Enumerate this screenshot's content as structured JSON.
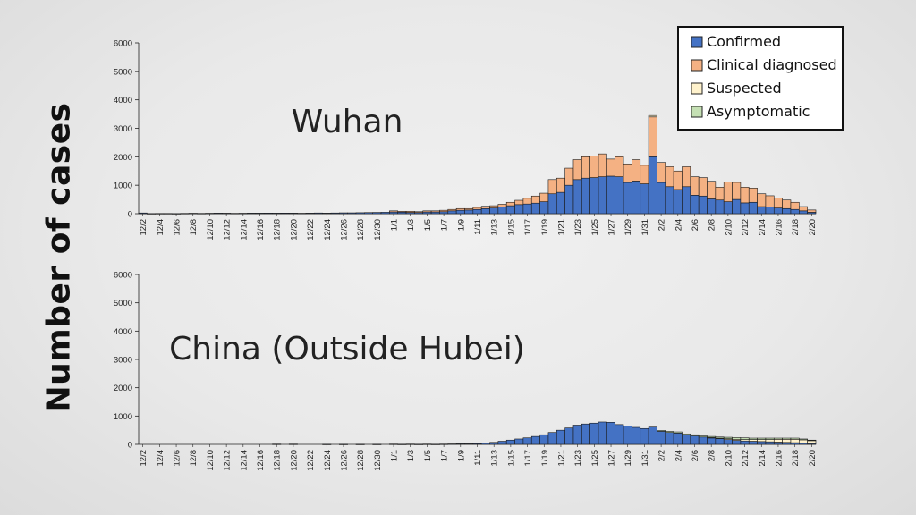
{
  "ylabel": "Number of cases",
  "colors": {
    "confirmed": "#4472C4",
    "clinical": "#F4B183",
    "suspected": "#FFF2CC",
    "asymptomatic": "#C5E0B4",
    "axis": "#222222"
  },
  "legend": {
    "position": "top-right",
    "items": [
      {
        "label": "Confirmed",
        "color": "#4472C4"
      },
      {
        "label": "Clinical diagnosed",
        "color": "#F4B183"
      },
      {
        "label": "Suspected",
        "color": "#FFF2CC"
      },
      {
        "label": "Asymptomatic",
        "color": "#C5E0B4"
      }
    ]
  },
  "chart_data": [
    {
      "type": "bar",
      "stacked": true,
      "title": "Wuhan",
      "ylim": [
        0,
        6000
      ],
      "yticks": [
        0,
        1000,
        2000,
        3000,
        4000,
        5000,
        6000
      ],
      "x": [
        "12/2",
        "12/3",
        "12/4",
        "12/5",
        "12/6",
        "12/7",
        "12/8",
        "12/9",
        "12/10",
        "12/11",
        "12/12",
        "12/13",
        "12/14",
        "12/15",
        "12/16",
        "12/17",
        "12/18",
        "12/19",
        "12/20",
        "12/21",
        "12/22",
        "12/23",
        "12/24",
        "12/25",
        "12/26",
        "12/27",
        "12/28",
        "12/29",
        "12/30",
        "12/31",
        "1/1",
        "1/2",
        "1/3",
        "1/4",
        "1/5",
        "1/6",
        "1/7",
        "1/8",
        "1/9",
        "1/10",
        "1/11",
        "1/12",
        "1/13",
        "1/14",
        "1/15",
        "1/16",
        "1/17",
        "1/18",
        "1/19",
        "1/20",
        "1/21",
        "1/22",
        "1/23",
        "1/24",
        "1/25",
        "1/26",
        "1/27",
        "1/28",
        "1/29",
        "1/30",
        "1/31",
        "2/1",
        "2/2",
        "2/3",
        "2/4",
        "2/5",
        "2/6",
        "2/7",
        "2/8",
        "2/9",
        "2/10",
        "2/11",
        "2/12",
        "2/13",
        "2/14",
        "2/15",
        "2/16",
        "2/17",
        "2/18",
        "2/19",
        "2/20"
      ],
      "xtick_labels": [
        "12/2",
        "12/4",
        "12/6",
        "12/8",
        "12/10",
        "12/12",
        "12/14",
        "12/16",
        "12/18",
        "12/20",
        "12/22",
        "12/24",
        "12/26",
        "12/28",
        "12/30",
        "1/1",
        "1/3",
        "1/5",
        "1/7",
        "1/9",
        "1/11",
        "1/13",
        "1/15",
        "1/17",
        "1/19",
        "1/21",
        "1/23",
        "1/25",
        "1/27",
        "1/29",
        "1/31",
        "2/2",
        "2/4",
        "2/6",
        "2/8",
        "2/10",
        "2/12",
        "2/14",
        "2/16",
        "2/18",
        "2/20"
      ],
      "series": [
        {
          "name": "Confirmed",
          "key": "confirmed",
          "values": [
            25,
            5,
            8,
            8,
            5,
            10,
            15,
            10,
            15,
            20,
            18,
            12,
            15,
            20,
            20,
            22,
            20,
            22,
            20,
            15,
            20,
            25,
            20,
            25,
            30,
            30,
            35,
            40,
            45,
            50,
            60,
            55,
            45,
            40,
            60,
            60,
            70,
            100,
            120,
            130,
            150,
            180,
            200,
            230,
            280,
            320,
            340,
            370,
            420,
            700,
            750,
            1000,
            1200,
            1250,
            1270,
            1300,
            1320,
            1300,
            1100,
            1150,
            1050,
            2000,
            1100,
            950,
            850,
            950,
            650,
            620,
            520,
            480,
            420,
            500,
            380,
            400,
            250,
            230,
            200,
            180,
            150,
            100,
            50
          ]
        },
        {
          "name": "Clinical diagnosed",
          "key": "clinical",
          "values": [
            0,
            0,
            0,
            0,
            0,
            0,
            0,
            0,
            0,
            0,
            0,
            0,
            0,
            0,
            0,
            0,
            0,
            0,
            0,
            0,
            0,
            0,
            0,
            0,
            0,
            0,
            0,
            0,
            0,
            0,
            40,
            30,
            40,
            30,
            40,
            40,
            50,
            50,
            60,
            50,
            70,
            80,
            80,
            100,
            120,
            150,
            200,
            250,
            300,
            500,
            500,
            600,
            700,
            750,
            760,
            800,
            600,
            700,
            650,
            750,
            650,
            1400,
            700,
            700,
            650,
            700,
            650,
            650,
            620,
            450,
            700,
            600,
            550,
            500,
            450,
            400,
            350,
            300,
            250,
            150,
            80
          ]
        },
        {
          "name": "Suspected",
          "key": "suspected",
          "values": [
            0,
            0,
            0,
            0,
            0,
            0,
            0,
            0,
            0,
            0,
            0,
            0,
            0,
            0,
            0,
            0,
            0,
            0,
            0,
            0,
            0,
            0,
            0,
            0,
            0,
            0,
            0,
            0,
            0,
            0,
            0,
            0,
            0,
            0,
            0,
            0,
            0,
            0,
            0,
            0,
            0,
            0,
            0,
            0,
            0,
            0,
            0,
            0,
            0,
            0,
            0,
            0,
            0,
            0,
            0,
            0,
            0,
            0,
            0,
            0,
            0,
            50,
            0,
            0,
            0,
            0,
            0,
            0,
            0,
            0,
            0,
            0,
            0,
            0,
            0,
            0,
            0,
            0,
            0,
            0,
            0
          ]
        },
        {
          "name": "Asymptomatic",
          "key": "asymptomatic",
          "values": [
            0,
            0,
            0,
            0,
            0,
            0,
            0,
            0,
            0,
            0,
            0,
            0,
            0,
            0,
            0,
            0,
            0,
            0,
            0,
            0,
            0,
            0,
            0,
            0,
            0,
            0,
            0,
            0,
            0,
            0,
            0,
            0,
            0,
            0,
            0,
            0,
            0,
            0,
            0,
            0,
            0,
            0,
            0,
            0,
            0,
            0,
            0,
            0,
            0,
            0,
            0,
            0,
            0,
            0,
            0,
            0,
            0,
            0,
            0,
            0,
            0,
            0,
            0,
            0,
            0,
            0,
            0,
            0,
            0,
            0,
            0,
            0,
            0,
            0,
            0,
            0,
            0,
            0,
            0,
            0,
            0
          ]
        }
      ]
    },
    {
      "type": "bar",
      "stacked": true,
      "title": "China (Outside Hubei)",
      "ylim": [
        0,
        6000
      ],
      "yticks": [
        0,
        1000,
        2000,
        3000,
        4000,
        5000,
        6000
      ],
      "x": [
        "12/2",
        "12/3",
        "12/4",
        "12/5",
        "12/6",
        "12/7",
        "12/8",
        "12/9",
        "12/10",
        "12/11",
        "12/12",
        "12/13",
        "12/14",
        "12/15",
        "12/16",
        "12/17",
        "12/18",
        "12/19",
        "12/20",
        "12/21",
        "12/22",
        "12/23",
        "12/24",
        "12/25",
        "12/26",
        "12/27",
        "12/28",
        "12/29",
        "12/30",
        "12/31",
        "1/1",
        "1/2",
        "1/3",
        "1/4",
        "1/5",
        "1/6",
        "1/7",
        "1/8",
        "1/9",
        "1/10",
        "1/11",
        "1/12",
        "1/13",
        "1/14",
        "1/15",
        "1/16",
        "1/17",
        "1/18",
        "1/19",
        "1/20",
        "1/21",
        "1/22",
        "1/23",
        "1/24",
        "1/25",
        "1/26",
        "1/27",
        "1/28",
        "1/29",
        "1/30",
        "1/31",
        "2/1",
        "2/2",
        "2/3",
        "2/4",
        "2/5",
        "2/6",
        "2/7",
        "2/8",
        "2/9",
        "2/10",
        "2/11",
        "2/12",
        "2/13",
        "2/14",
        "2/15",
        "2/16",
        "2/17",
        "2/18",
        "2/19",
        "2/20"
      ],
      "xtick_labels": [
        "12/2",
        "12/4",
        "12/6",
        "12/8",
        "12/10",
        "12/12",
        "12/14",
        "12/16",
        "12/18",
        "12/20",
        "12/22",
        "12/24",
        "12/26",
        "12/28",
        "12/30",
        "1/1",
        "1/3",
        "1/5",
        "1/7",
        "1/9",
        "1/11",
        "1/13",
        "1/15",
        "1/17",
        "1/19",
        "1/21",
        "1/23",
        "1/25",
        "1/27",
        "1/29",
        "1/31",
        "2/2",
        "2/4",
        "2/6",
        "2/8",
        "2/10",
        "2/12",
        "2/14",
        "2/16",
        "2/18",
        "2/20"
      ],
      "series": [
        {
          "name": "Confirmed",
          "key": "confirmed",
          "values": [
            0,
            0,
            0,
            0,
            0,
            0,
            0,
            0,
            0,
            0,
            0,
            0,
            0,
            0,
            0,
            0,
            10,
            0,
            10,
            0,
            0,
            0,
            5,
            0,
            5,
            0,
            5,
            0,
            5,
            0,
            10,
            5,
            10,
            5,
            10,
            5,
            10,
            15,
            20,
            20,
            25,
            40,
            70,
            110,
            150,
            190,
            230,
            280,
            340,
            420,
            500,
            580,
            680,
            720,
            750,
            790,
            780,
            700,
            650,
            600,
            560,
            610,
            460,
            420,
            400,
            330,
            300,
            260,
            230,
            200,
            170,
            140,
            120,
            110,
            100,
            90,
            80,
            70,
            60,
            40,
            30
          ]
        },
        {
          "name": "Clinical diagnosed",
          "key": "clinical",
          "values": [
            0,
            0,
            0,
            0,
            0,
            0,
            0,
            0,
            0,
            0,
            0,
            0,
            0,
            0,
            0,
            0,
            0,
            0,
            0,
            0,
            0,
            0,
            0,
            0,
            0,
            0,
            0,
            0,
            0,
            0,
            0,
            0,
            0,
            0,
            0,
            0,
            0,
            0,
            0,
            0,
            0,
            0,
            0,
            0,
            0,
            0,
            0,
            0,
            0,
            0,
            0,
            0,
            0,
            0,
            0,
            0,
            0,
            0,
            0,
            0,
            0,
            0,
            0,
            0,
            0,
            0,
            0,
            0,
            0,
            0,
            0,
            0,
            0,
            0,
            0,
            0,
            0,
            0,
            0,
            0,
            0
          ]
        },
        {
          "name": "Suspected",
          "key": "suspected",
          "values": [
            0,
            0,
            0,
            0,
            0,
            0,
            0,
            0,
            0,
            0,
            0,
            0,
            0,
            0,
            0,
            0,
            0,
            0,
            0,
            0,
            0,
            0,
            0,
            0,
            0,
            0,
            0,
            0,
            0,
            0,
            0,
            0,
            0,
            0,
            0,
            0,
            0,
            0,
            0,
            0,
            0,
            0,
            0,
            0,
            0,
            0,
            0,
            0,
            0,
            0,
            0,
            0,
            0,
            0,
            0,
            0,
            0,
            0,
            0,
            0,
            0,
            0,
            0,
            0,
            0,
            0,
            0,
            0,
            10,
            20,
            30,
            40,
            50,
            60,
            70,
            80,
            100,
            110,
            120,
            120,
            100
          ]
        },
        {
          "name": "Asymptomatic",
          "key": "asymptomatic",
          "values": [
            0,
            0,
            0,
            0,
            0,
            0,
            0,
            0,
            0,
            0,
            0,
            0,
            0,
            0,
            0,
            0,
            0,
            0,
            0,
            0,
            0,
            0,
            0,
            0,
            0,
            0,
            0,
            0,
            0,
            0,
            0,
            0,
            0,
            0,
            0,
            0,
            0,
            0,
            0,
            0,
            0,
            0,
            0,
            0,
            0,
            0,
            0,
            0,
            0,
            0,
            0,
            0,
            0,
            0,
            0,
            0,
            0,
            0,
            0,
            0,
            0,
            0,
            30,
            40,
            40,
            40,
            40,
            40,
            40,
            40,
            50,
            60,
            60,
            50,
            50,
            50,
            40,
            40,
            40,
            30,
            20
          ]
        }
      ]
    }
  ]
}
